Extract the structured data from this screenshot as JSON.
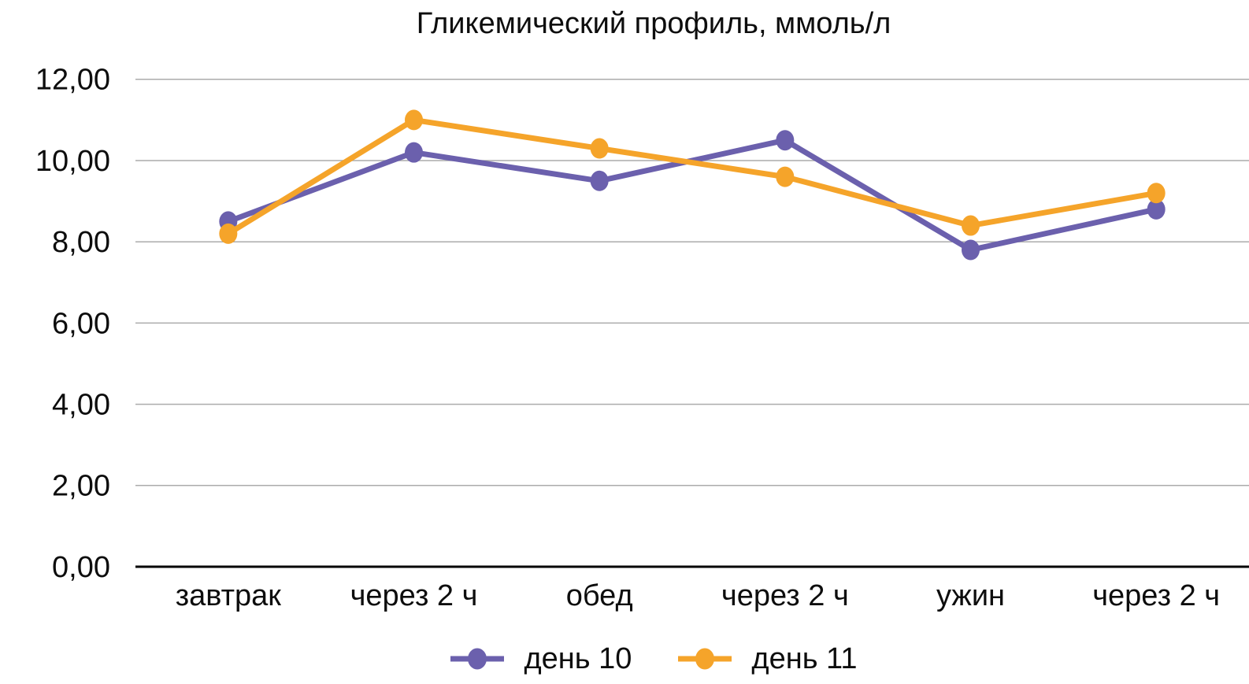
{
  "chart_data": {
    "type": "line",
    "title": "Гликемический профиль, ммоль/л",
    "categories": [
      "завтрак",
      "через 2 ч",
      "обед",
      "через 2 ч",
      "ужин",
      "через 2 ч"
    ],
    "series": [
      {
        "name": "день 10",
        "color": "#6B60AD",
        "values": [
          8.5,
          10.2,
          9.5,
          10.5,
          7.8,
          8.8
        ]
      },
      {
        "name": "день 11",
        "color": "#F5A42A",
        "values": [
          8.2,
          11.0,
          10.3,
          9.6,
          8.4,
          9.2
        ]
      }
    ],
    "y_axis": {
      "min": 0,
      "max": 12,
      "step": 2,
      "tick_labels": [
        "0,00",
        "2,00",
        "4,00",
        "6,00",
        "8,00",
        "10,00",
        "12,00"
      ]
    },
    "x_axis": {
      "label": ""
    },
    "grid": "horizontal",
    "legend_position": "bottom",
    "colors": {
      "gridline": "#ABABAB",
      "axis": "#000000",
      "text": "#0D0D0D",
      "background": "#FFFFFF"
    }
  }
}
